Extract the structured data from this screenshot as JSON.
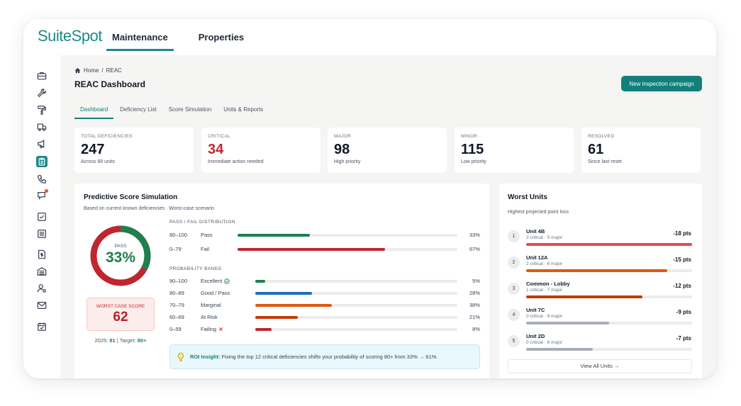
{
  "app": {
    "logo_text": "SuiteSpot",
    "nav": [
      {
        "label": "Maintenance",
        "active": true
      },
      {
        "label": "Properties",
        "active": false
      }
    ]
  },
  "sidebar": {
    "icons": [
      "briefcase-icon",
      "wrench-icon",
      "paint-roller-icon",
      "truck-icon",
      "megaphone-icon",
      "clipboard-icon",
      "phone-icon",
      "chat-alert-icon",
      "checkbox-icon",
      "list-icon",
      "document-dollar-icon",
      "building-icon",
      "user-settings-icon",
      "mail-icon",
      "calendar-check-icon"
    ],
    "active_icon": "clipboard-icon"
  },
  "breadcrumb": {
    "home": "Home",
    "separator": "/",
    "current": "REAC"
  },
  "page_title": "REAC Dashboard",
  "primary_button": "New inspection campaign",
  "tabs": [
    {
      "label": "Dashboard",
      "active": true
    },
    {
      "label": "Deficiency List",
      "active": false
    },
    {
      "label": "Score Simulation",
      "active": false
    },
    {
      "label": "Units & Reports",
      "active": false
    }
  ],
  "stats": [
    {
      "label": "TOTAL DEFICIENCIES",
      "value": "247",
      "sub": "Across 89 units",
      "red": false
    },
    {
      "label": "CRITICAL",
      "value": "34",
      "sub": "Immediate action needed",
      "red": true
    },
    {
      "label": "MAJOR",
      "value": "98",
      "sub": "High priority",
      "red": false
    },
    {
      "label": "MINOR",
      "value": "115",
      "sub": "Low priority",
      "red": false
    },
    {
      "label": "RESOLVED",
      "value": "61",
      "sub": "Since last reset",
      "red": false
    }
  ],
  "simulation": {
    "title": "Predictive Score Simulation",
    "subtitle": "Based on current known deficiencies · Worst-case scenario",
    "donut": {
      "label": "PASS",
      "value": "33%",
      "pass_fraction": 0.33,
      "pass_color": "#1e7f4f",
      "fail_color": "#c0262d"
    },
    "worst_case": {
      "label": "WORST CASE SCORE",
      "value": "62"
    },
    "year_line": {
      "year_label": "2025:",
      "year_value": "81",
      "divider": "|",
      "target_label": "Target:",
      "target_value": "80+"
    },
    "distribution_label": "PASS / FAIL DISTRIBUTION",
    "distribution": [
      {
        "range": "80–100",
        "name": "Pass",
        "pct": "33%",
        "fraction": 0.33,
        "color": "#1e7f4f"
      },
      {
        "range": "0–79",
        "name": "Fail",
        "pct": "67%",
        "fraction": 0.67,
        "color": "#c0262d"
      }
    ],
    "bands_label": "PROBABILITY BANDS",
    "bands": [
      {
        "range": "90–100",
        "name": "Excellent",
        "mark": "check",
        "pct": "5%",
        "fraction": 0.05,
        "color": "#1e7f4f"
      },
      {
        "range": "80–89",
        "name": "Good / Pass",
        "mark": "",
        "pct": "28%",
        "fraction": 0.28,
        "color": "#1f6fb8"
      },
      {
        "range": "70–79",
        "name": "Marginal",
        "mark": "",
        "pct": "38%",
        "fraction": 0.38,
        "color": "#e0590f"
      },
      {
        "range": "60–69",
        "name": "At Risk",
        "mark": "",
        "pct": "21%",
        "fraction": 0.21,
        "color": "#c23a0c"
      },
      {
        "range": "0–59",
        "name": "Failing",
        "mark": "cross",
        "pct": "8%",
        "fraction": 0.08,
        "color": "#c0262d"
      }
    ],
    "insight": {
      "title": "ROI Insight:",
      "text": "Fixing the top 12 critical deficiencies shifts your probability of scoring 80+ from 33% → 61%."
    }
  },
  "worst_units": {
    "title": "Worst Units",
    "subtitle": "Highest projected point loss",
    "units": [
      {
        "rank": "1",
        "name": "Unit 4B",
        "detail": "3 critical · 5 major",
        "pts": "-18 pts",
        "fraction": 1.0,
        "color": "#e5484d"
      },
      {
        "rank": "2",
        "name": "Unit 12A",
        "detail": "2 critical · 6 major",
        "pts": "-15 pts",
        "fraction": 0.85,
        "color": "#e0590f"
      },
      {
        "rank": "3",
        "name": "Common - Lobby",
        "detail": "1 critical · 7 major",
        "pts": "-12 pts",
        "fraction": 0.7,
        "color": "#c23a0c"
      },
      {
        "rank": "4",
        "name": "Unit 7C",
        "detail": "0 critical · 8 major",
        "pts": "-9 pts",
        "fraction": 0.5,
        "color": "#a8aeb6"
      },
      {
        "rank": "5",
        "name": "Unit 2D",
        "detail": "0 critical · 6 major",
        "pts": "-7 pts",
        "fraction": 0.4,
        "color": "#a8aeb6"
      }
    ],
    "view_all": "View All Units →"
  }
}
